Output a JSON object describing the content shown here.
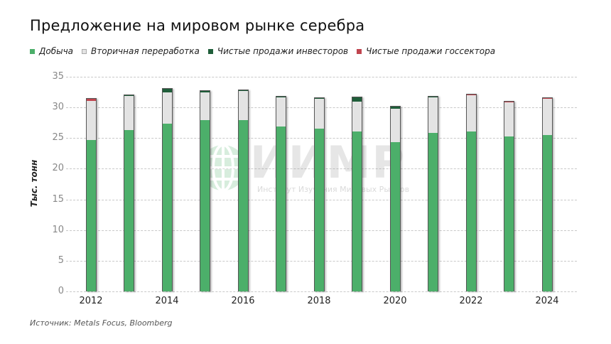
{
  "header": {
    "title": "Предложение на мировом рынке серебра"
  },
  "legend": [
    {
      "label": "Добыча",
      "color": "#4caf6a"
    },
    {
      "label": "Вторичная переработка",
      "color": "#e3e3e3"
    },
    {
      "label": "Чистые продажи инвесторов",
      "color": "#1f5e3a"
    },
    {
      "label": "Чистые продажи госсектора",
      "color": "#c0454f"
    }
  ],
  "axis": {
    "ylabel": "Тыс. тонн",
    "yticks": [
      "35",
      "30",
      "25",
      "20",
      "15",
      "10",
      "5",
      "0"
    ],
    "xticks": [
      "2012",
      "2014",
      "2016",
      "2018",
      "2020",
      "2022",
      "2024"
    ]
  },
  "watermark": {
    "text": "ИИМР",
    "subtitle": "Институт Изучения Мировых Рынков"
  },
  "footer": {
    "source": "Источник: Metals Focus, Bloomberg"
  },
  "chart_data": {
    "type": "bar",
    "stacked": true,
    "title": "Предложение на мировом рынке серебра",
    "xlabel": "",
    "ylabel": "Тыс. тонн",
    "ylim": [
      0,
      35
    ],
    "grid": true,
    "legend_position": "top-left",
    "categories": [
      "2012",
      "2013",
      "2014",
      "2015",
      "2016",
      "2017",
      "2018",
      "2019",
      "2020",
      "2021",
      "2022",
      "2023",
      "2024"
    ],
    "series": [
      {
        "name": "Добыча",
        "color": "#4caf6a",
        "values": [
          24.8,
          26.4,
          27.4,
          28.0,
          28.0,
          27.0,
          26.6,
          26.2,
          24.4,
          25.9,
          26.2,
          25.3,
          25.6
        ]
      },
      {
        "name": "Вторичная переработка",
        "color": "#e3e3e3",
        "values": [
          6.4,
          5.6,
          5.2,
          4.6,
          4.8,
          4.8,
          4.9,
          4.9,
          5.5,
          5.9,
          5.9,
          5.7,
          5.9
        ]
      },
      {
        "name": "Чистые продажи инвесторов",
        "color": "#1f5e3a",
        "values": [
          0.0,
          0.1,
          0.5,
          0.2,
          0.1,
          0.1,
          0.1,
          0.6,
          0.4,
          0.1,
          0.0,
          0.0,
          0.0
        ]
      },
      {
        "name": "Чистые продажи госсектора",
        "color": "#c0454f",
        "values": [
          0.3,
          0.0,
          0.0,
          0.0,
          0.0,
          0.0,
          0.0,
          0.0,
          0.0,
          0.0,
          0.1,
          0.1,
          0.1
        ]
      }
    ]
  }
}
